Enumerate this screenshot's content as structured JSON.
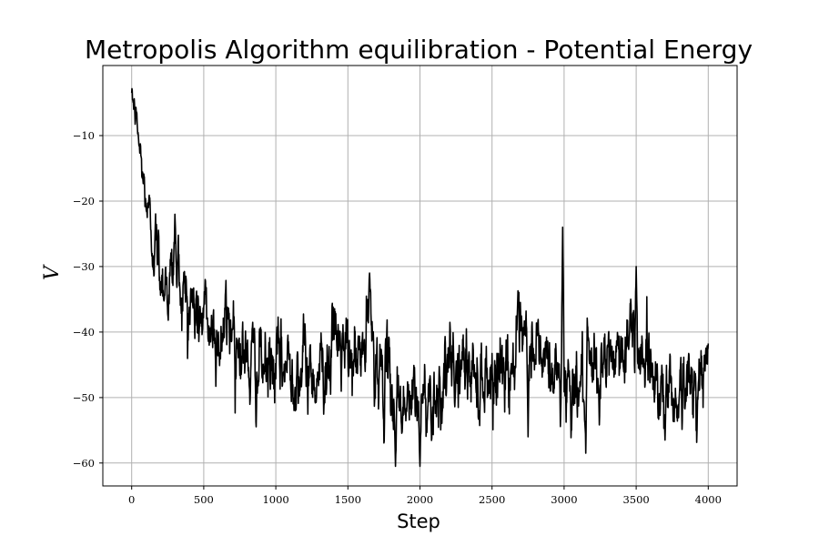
{
  "chart_data": {
    "type": "line",
    "title": "Metropolis Algorithm equilibration - Potential Energy",
    "xlabel": "Step",
    "ylabel": "V",
    "xlim": [
      -200,
      4200
    ],
    "ylim": [
      -63.5,
      0.7
    ],
    "xticks": [
      0,
      500,
      1000,
      1500,
      2000,
      2500,
      3000,
      3500,
      4000
    ],
    "yticks": [
      -10,
      -20,
      -30,
      -40,
      -50,
      -60
    ],
    "ytick_labels": [
      "−10",
      "−20",
      "−30",
      "−40",
      "−50",
      "−60"
    ],
    "grid": true,
    "series_color": "#000000",
    "n_steps": 4000,
    "noise_std": 4.8,
    "trend": [
      [
        0,
        -3.5
      ],
      [
        40,
        -9
      ],
      [
        80,
        -17
      ],
      [
        130,
        -24
      ],
      [
        200,
        -30
      ],
      [
        260,
        -33
      ],
      [
        300,
        -30
      ],
      [
        400,
        -36
      ],
      [
        500,
        -38
      ],
      [
        600,
        -41
      ],
      [
        700,
        -38
      ],
      [
        800,
        -45
      ],
      [
        1000,
        -46
      ],
      [
        1100,
        -45
      ],
      [
        1300,
        -46
      ],
      [
        1420,
        -41
      ],
      [
        1500,
        -45
      ],
      [
        1600,
        -44
      ],
      [
        1650,
        -38
      ],
      [
        1700,
        -45
      ],
      [
        1800,
        -49
      ],
      [
        1900,
        -51
      ],
      [
        2000,
        -51
      ],
      [
        2100,
        -49
      ],
      [
        2200,
        -47
      ],
      [
        2300,
        -45
      ],
      [
        2400,
        -47
      ],
      [
        2500,
        -46
      ],
      [
        2600,
        -45
      ],
      [
        2700,
        -43
      ],
      [
        2800,
        -42
      ],
      [
        2900,
        -46
      ],
      [
        3000,
        -47
      ],
      [
        3100,
        -48
      ],
      [
        3200,
        -47
      ],
      [
        3300,
        -45
      ],
      [
        3400,
        -42
      ],
      [
        3500,
        -41
      ],
      [
        3600,
        -45
      ],
      [
        3700,
        -49
      ],
      [
        3800,
        -49
      ],
      [
        3900,
        -48
      ],
      [
        4000,
        -46
      ]
    ],
    "features": [
      [
        300,
        -22
      ],
      [
        1650,
        -31
      ],
      [
        1830,
        -60.5
      ],
      [
        2000,
        -60.5
      ],
      [
        2990,
        -24
      ],
      [
        3500,
        -30
      ],
      [
        3150,
        -58.5
      ],
      [
        2750,
        -56
      ],
      [
        3700,
        -56.5
      ]
    ]
  }
}
